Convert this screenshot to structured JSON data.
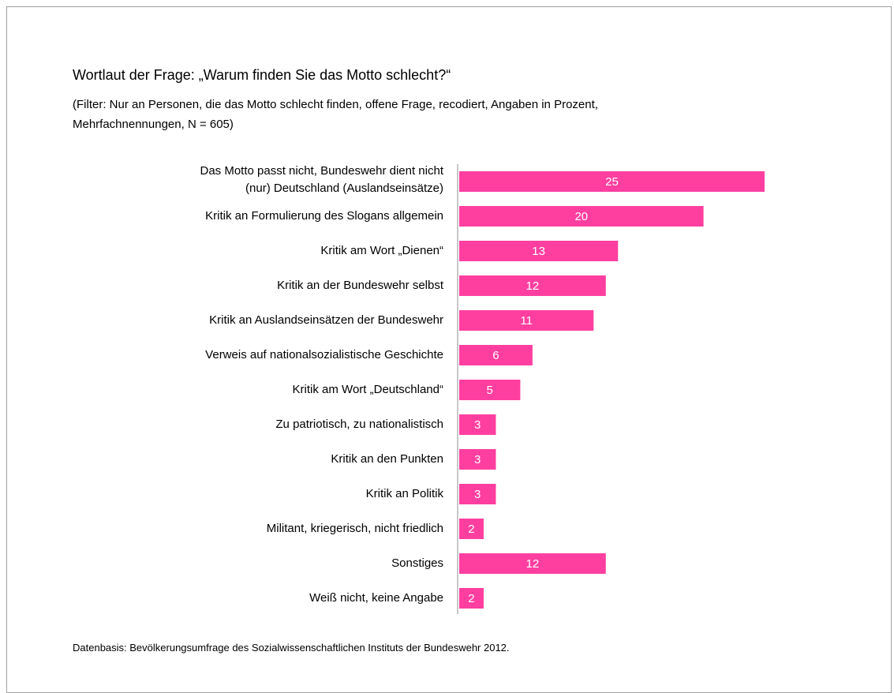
{
  "chart_data": {
    "type": "bar",
    "orientation": "horizontal",
    "title": "Wortlaut der Frage: „Warum finden Sie das Motto schlecht?“",
    "subtitle": "(Filter: Nur an Personen, die das Motto schlecht finden, offene Frage, recodiert, Angaben in Prozent,\nMehrfachnennungen, N = 605)",
    "note": "Datenbasis: Bevölkerungsumfrage des Sozialwissenschaftlichen Instituts der Bundeswehr 2012.",
    "categories": [
      "Das Motto passt nicht, Bundeswehr dient nicht\n(nur) Deutschland (Auslandseinsätze)",
      "Kritik an Formulierung des Slogans allgemein",
      "Kritik am Wort „Dienen“",
      "Kritik an der Bundeswehr selbst",
      "Kritik an Auslandseinsätzen der Bundeswehr",
      "Verweis auf nationalsozialistische Geschichte",
      "Kritik am Wort „Deutschland“",
      "Zu patriotisch, zu nationalistisch",
      "Kritik an den Punkten",
      "Kritik an Politik",
      "Militant, kriegerisch, nicht friedlich",
      "Sonstiges",
      "Weiß nicht, keine Angabe"
    ],
    "values": [
      25,
      20,
      13,
      12,
      11,
      6,
      5,
      3,
      3,
      3,
      2,
      12,
      2
    ],
    "color": "#ff3fa0"
  }
}
